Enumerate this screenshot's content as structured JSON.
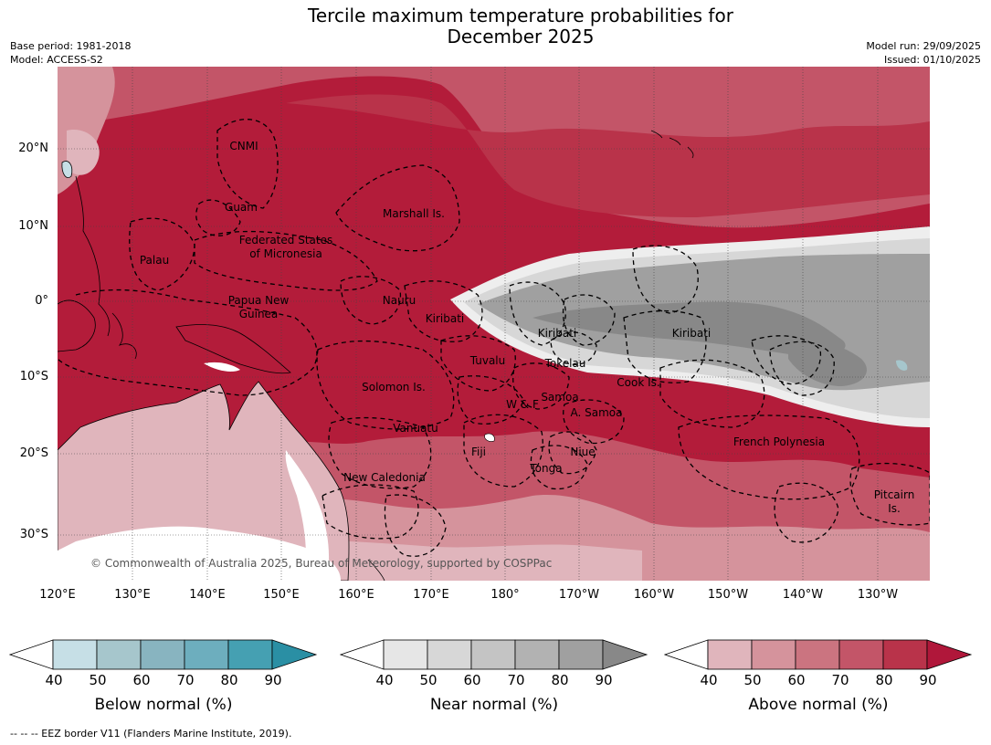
{
  "title_line1": "Tercile maximum temperature probabilities for",
  "title_line2": "December 2025",
  "base_period": "Base period: 1981-2018",
  "model": "Model: ACCESS-S2",
  "model_run": "Model run: 29/09/2025",
  "issued": "Issued: 01/10/2025",
  "lat_labels": [
    "20°N",
    "10°N",
    "0°",
    "10°S",
    "20°S",
    "30°S"
  ],
  "lon_labels": [
    "120°E",
    "130°E",
    "140°E",
    "150°E",
    "160°E",
    "170°E",
    "180°",
    "170°W",
    "160°W",
    "150°W",
    "140°W",
    "130°W"
  ],
  "regions": [
    "CNMI",
    "Guam",
    "Marshall Is.",
    "Federated States",
    "of Micronesia",
    "Palau",
    "Papua New",
    "Guinea",
    "Nauru",
    "Kiribati",
    "Kiribati",
    "Kiribati",
    "Tuvalu",
    "Tokelau",
    "Cook Is.",
    "Solomon Is.",
    "Samoa",
    "W & F",
    "A. Samoa",
    "Vanuatu",
    "Fiji",
    "Niue",
    "Tonga",
    "French Polynesia",
    "New Caledonia",
    "Pitcairn",
    "Is."
  ],
  "copyright": "© Commonwealth of Australia 2025, Bureau of Meteorology, supported by COSPPac",
  "colorbars": [
    {
      "title": "Below normal (%)",
      "ticks": [
        "40",
        "50",
        "60",
        "70",
        "80",
        "90"
      ],
      "colors": [
        "#ffffff",
        "#c6dfe6",
        "#a6c6cc",
        "#88b4c0",
        "#6daebe",
        "#45a0b2",
        "#2a8fa4"
      ]
    },
    {
      "title": "Near normal (%)",
      "ticks": [
        "40",
        "50",
        "60",
        "70",
        "80",
        "90"
      ],
      "colors": [
        "#ffffff",
        "#e6e6e6",
        "#d7d7d7",
        "#c4c4c4",
        "#b2b2b2",
        "#a0a0a0",
        "#888888"
      ]
    },
    {
      "title": "Above normal (%)",
      "ticks": [
        "40",
        "50",
        "60",
        "70",
        "80",
        "90"
      ],
      "colors": [
        "#ffffff",
        "#e0b5bc",
        "#d5939c",
        "#cb7480",
        "#c35568",
        "#b9334a",
        "#b0173a"
      ]
    }
  ],
  "footnote": "--  --  -- EEZ border V11 (Flanders Marine Institute, 2019)."
}
